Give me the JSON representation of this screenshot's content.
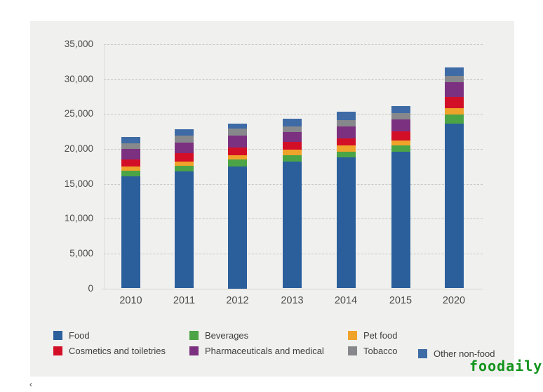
{
  "page": {
    "watermark": "foodaily",
    "watermark_color": "#12941c",
    "corner_glyph": "‹"
  },
  "chart_data": {
    "type": "bar",
    "stacked": true,
    "title": "",
    "xlabel": "",
    "ylabel": "",
    "categories": [
      "2010",
      "2011",
      "2012",
      "2013",
      "2014",
      "2015",
      "2020"
    ],
    "series": [
      {
        "name": "Food",
        "color": "#2b5f9c",
        "values": [
          16100,
          16750,
          17500,
          18150,
          18750,
          19550,
          23600
        ]
      },
      {
        "name": "Beverages",
        "color": "#4ba446",
        "values": [
          800,
          850,
          950,
          900,
          850,
          950,
          1300
        ]
      },
      {
        "name": "Pet food",
        "color": "#f0a32a",
        "values": [
          550,
          600,
          650,
          800,
          850,
          750,
          950
        ]
      },
      {
        "name": "Cosmetics and toiletries",
        "color": "#d30f27",
        "values": [
          1000,
          1200,
          1100,
          1150,
          1050,
          1250,
          1550
        ]
      },
      {
        "name": "Pharmaceuticals and medical",
        "color": "#7c3180",
        "values": [
          1500,
          1500,
          1700,
          1400,
          1700,
          1700,
          2200
        ]
      },
      {
        "name": "Tobacco",
        "color": "#86888b",
        "values": [
          850,
          1000,
          1000,
          850,
          950,
          950,
          900
        ]
      },
      {
        "name": "Other non-food",
        "color": "#3e6ba5",
        "values": [
          900,
          900,
          750,
          1050,
          1150,
          1000,
          1200
        ]
      }
    ],
    "totals": [
      21700,
      22800,
      23650,
      24300,
      25300,
      26150,
      31700
    ],
    "y_axis": {
      "min": 0,
      "max": 35000,
      "tick_interval": 5000,
      "tick_labels": [
        "0",
        "5,000",
        "10,000",
        "15,000",
        "20,000",
        "25,000",
        "30,000",
        "35,000"
      ]
    },
    "grid": "horizontal dashed",
    "legend_position": "bottom",
    "panel_background": "#f0f0ee"
  }
}
